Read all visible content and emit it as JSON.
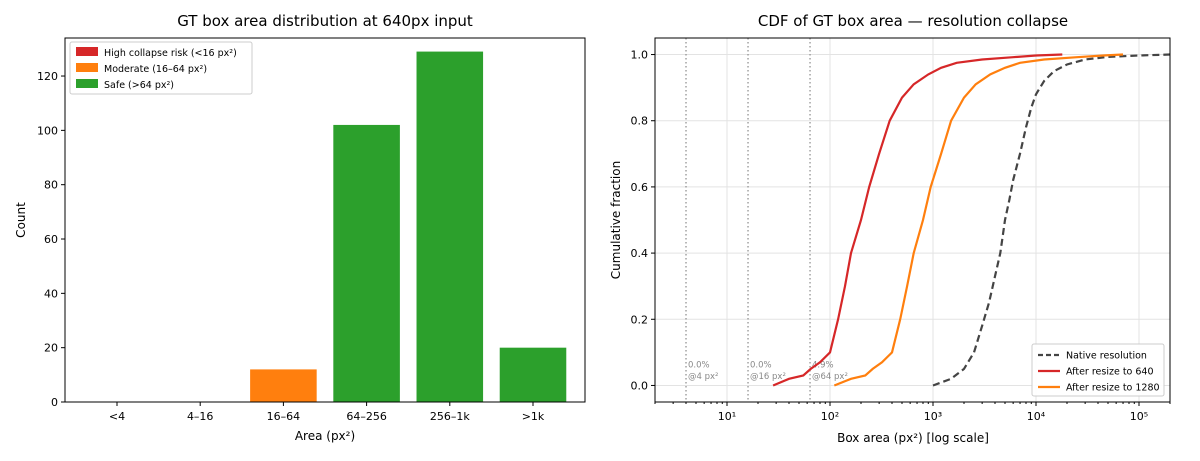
{
  "chart_data": [
    {
      "type": "bar",
      "title": "GT box area distribution at 640px input",
      "xlabel": "Area (px²)",
      "ylabel": "Count",
      "ylim": [
        0,
        134
      ],
      "yticks": [
        0,
        20,
        40,
        60,
        80,
        100,
        120
      ],
      "categories": [
        "<4",
        "4–16",
        "16–64",
        "64–256",
        "256–1k",
        ">1k"
      ],
      "values": [
        0,
        0,
        12,
        102,
        129,
        20
      ],
      "bar_groups": [
        "high",
        "high",
        "moderate",
        "safe",
        "safe",
        "safe"
      ],
      "legend": {
        "placement": "top-left",
        "entries": [
          {
            "key": "high",
            "label": "High collapse risk (<16 px²)",
            "color": "#d62728"
          },
          {
            "key": "moderate",
            "label": "Moderate (16–64 px²)",
            "color": "#ff7f0e"
          },
          {
            "key": "safe",
            "label": "Safe (>64 px²)",
            "color": "#2ca02c"
          }
        ]
      },
      "grid": false
    },
    {
      "type": "line",
      "title": "CDF of GT box area — resolution collapse",
      "xlabel": "Box area (px²) [log scale]",
      "ylabel": "Cumulative fraction",
      "xscale": "log",
      "xlim": [
        2,
        200000
      ],
      "ylim": [
        -0.05,
        1.05
      ],
      "xticks": [
        10,
        100,
        1000,
        10000,
        100000
      ],
      "xtick_labels": [
        "10¹",
        "10²",
        "10³",
        "10⁴",
        "10⁵"
      ],
      "yticks": [
        0.0,
        0.2,
        0.4,
        0.6,
        0.8,
        1.0
      ],
      "ytick_labels": [
        "0.0",
        "0.2",
        "0.4",
        "0.6",
        "0.8",
        "1.0"
      ],
      "grid": true,
      "legend": {
        "placement": "bottom-right"
      },
      "series": [
        {
          "name": "Native resolution",
          "color": "#444444",
          "style": "dashed",
          "points": [
            [
              1000,
              0.0
            ],
            [
              1500,
              0.02
            ],
            [
              2000,
              0.05
            ],
            [
              2500,
              0.1
            ],
            [
              3000,
              0.18
            ],
            [
              3500,
              0.25
            ],
            [
              4000,
              0.33
            ],
            [
              4500,
              0.4
            ],
            [
              5000,
              0.5
            ],
            [
              5500,
              0.56
            ],
            [
              6000,
              0.62
            ],
            [
              7000,
              0.7
            ],
            [
              8000,
              0.78
            ],
            [
              9000,
              0.84
            ],
            [
              10000,
              0.88
            ],
            [
              12000,
              0.92
            ],
            [
              15000,
              0.95
            ],
            [
              20000,
              0.97
            ],
            [
              30000,
              0.985
            ],
            [
              50000,
              0.993
            ],
            [
              100000,
              0.997
            ],
            [
              200000,
              1.0
            ]
          ]
        },
        {
          "name": "After resize to 640",
          "color": "#d62728",
          "style": "solid",
          "points": [
            [
              28,
              0.0
            ],
            [
              40,
              0.02
            ],
            [
              55,
              0.03
            ],
            [
              65,
              0.05
            ],
            [
              80,
              0.07
            ],
            [
              100,
              0.1
            ],
            [
              120,
              0.2
            ],
            [
              140,
              0.3
            ],
            [
              160,
              0.4
            ],
            [
              200,
              0.5
            ],
            [
              240,
              0.6
            ],
            [
              300,
              0.7
            ],
            [
              380,
              0.8
            ],
            [
              500,
              0.87
            ],
            [
              650,
              0.91
            ],
            [
              900,
              0.94
            ],
            [
              1200,
              0.96
            ],
            [
              1700,
              0.975
            ],
            [
              3000,
              0.985
            ],
            [
              6000,
              0.992
            ],
            [
              10000,
              0.997
            ],
            [
              18000,
              1.0
            ]
          ]
        },
        {
          "name": "After resize to 1280",
          "color": "#ff7f0e",
          "style": "solid",
          "points": [
            [
              110,
              0.0
            ],
            [
              160,
              0.02
            ],
            [
              220,
              0.03
            ],
            [
              260,
              0.05
            ],
            [
              320,
              0.07
            ],
            [
              400,
              0.1
            ],
            [
              480,
              0.2
            ],
            [
              560,
              0.3
            ],
            [
              650,
              0.4
            ],
            [
              800,
              0.5
            ],
            [
              950,
              0.6
            ],
            [
              1200,
              0.7
            ],
            [
              1500,
              0.8
            ],
            [
              2000,
              0.87
            ],
            [
              2600,
              0.91
            ],
            [
              3600,
              0.94
            ],
            [
              5000,
              0.96
            ],
            [
              7000,
              0.975
            ],
            [
              12000,
              0.985
            ],
            [
              25000,
              0.992
            ],
            [
              45000,
              0.997
            ],
            [
              70000,
              1.0
            ]
          ]
        }
      ],
      "vlines": [
        {
          "x": 4,
          "label": "0.0%",
          "sublabel": "@4 px²"
        },
        {
          "x": 16,
          "label": "0.0%",
          "sublabel": "@16 px²"
        },
        {
          "x": 64,
          "label": "4.9%",
          "sublabel": "@64 px²"
        }
      ]
    }
  ]
}
